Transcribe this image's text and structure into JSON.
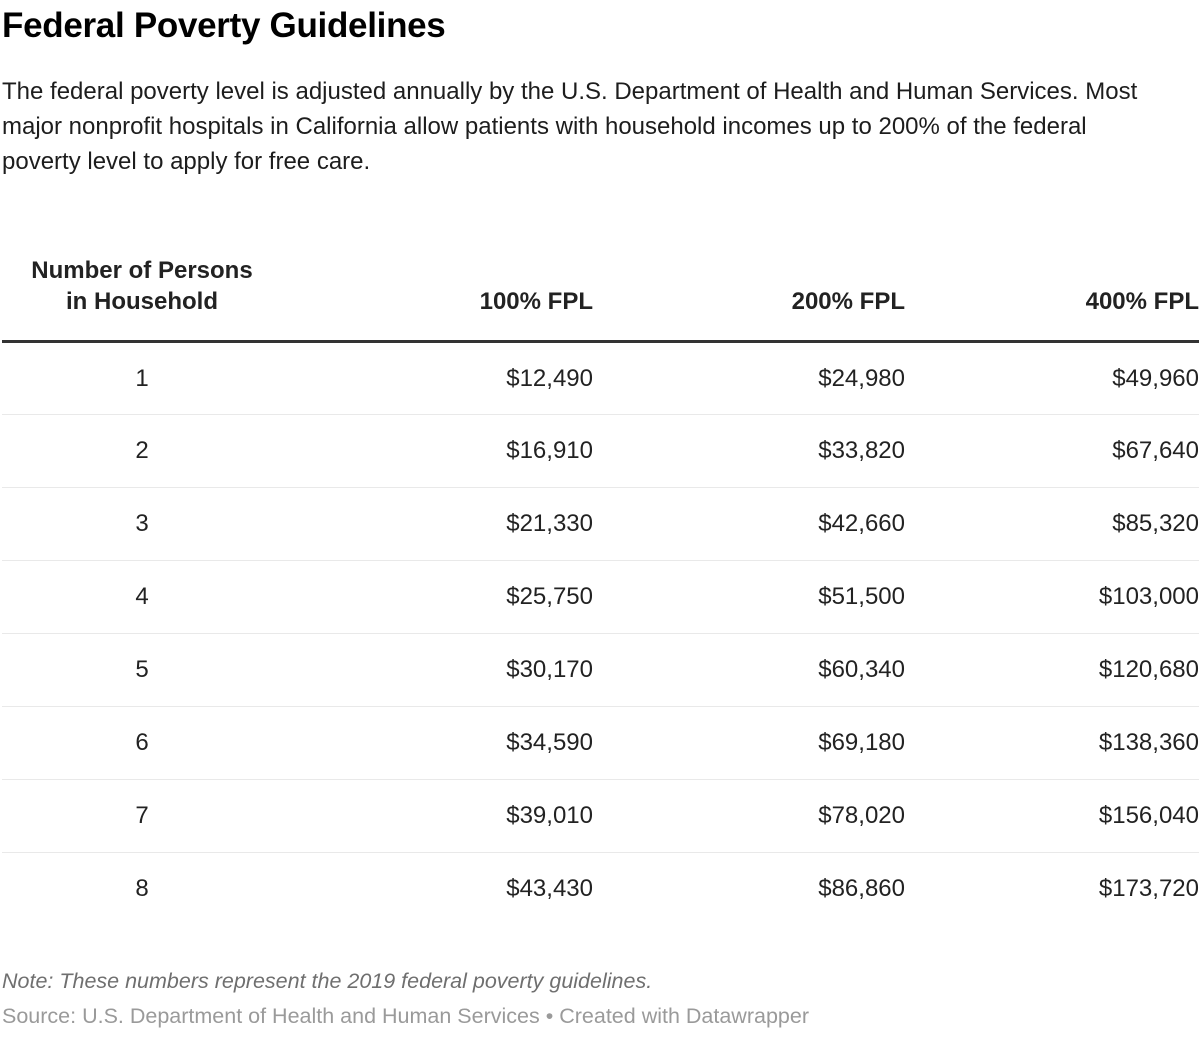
{
  "chart_data": {
    "type": "table",
    "title": "Federal Poverty Guidelines",
    "description": "The federal poverty level is adjusted annually by the U.S. Department of Health and Human Services. Most major nonprofit hospitals in California allow patients with household incomes up to 200% of the federal poverty level to apply for free care.",
    "columns": [
      "Number of Persons in Household",
      "100% FPL",
      "200% FPL",
      "400% FPL"
    ],
    "header": {
      "persons_line1": "Number of Persons",
      "persons_line2": "in Household",
      "fpl100": "100% FPL",
      "fpl200": "200% FPL",
      "fpl400": "400% FPL"
    },
    "rows": [
      {
        "persons": "1",
        "fpl100": "$12,490",
        "fpl200": "$24,980",
        "fpl400": "$49,960"
      },
      {
        "persons": "2",
        "fpl100": "$16,910",
        "fpl200": "$33,820",
        "fpl400": "$67,640"
      },
      {
        "persons": "3",
        "fpl100": "$21,330",
        "fpl200": "$42,660",
        "fpl400": "$85,320"
      },
      {
        "persons": "4",
        "fpl100": "$25,750",
        "fpl200": "$51,500",
        "fpl400": "$103,000"
      },
      {
        "persons": "5",
        "fpl100": "$30,170",
        "fpl200": "$60,340",
        "fpl400": "$120,680"
      },
      {
        "persons": "6",
        "fpl100": "$34,590",
        "fpl200": "$69,180",
        "fpl400": "$138,360"
      },
      {
        "persons": "7",
        "fpl100": "$39,010",
        "fpl200": "$78,020",
        "fpl400": "$156,040"
      },
      {
        "persons": "8",
        "fpl100": "$43,430",
        "fpl200": "$86,860",
        "fpl400": "$173,720"
      }
    ],
    "note": "Note: These numbers represent the 2019 federal poverty guidelines.",
    "source": "Source: U.S. Department of Health and Human Services • Created with Datawrapper",
    "layout": {
      "grid": "horizontal-row-separators",
      "header_rule": "thick-bottom",
      "numeric_alignment": "right"
    }
  },
  "colors": {
    "title_color": "#000000",
    "text": "#1d1d1d",
    "table_text": "#222222",
    "header_border": "#333333",
    "row_border": "#e9e9e9",
    "note_color": "#6f6f6f",
    "source_color": "#9a9a9a",
    "bg": "#ffffff"
  }
}
